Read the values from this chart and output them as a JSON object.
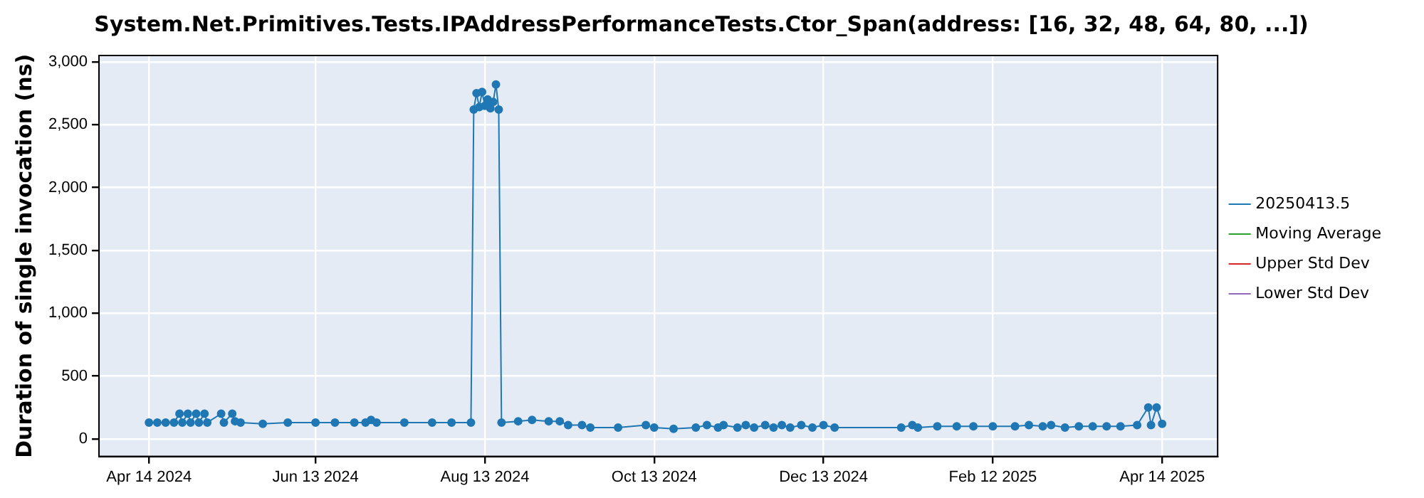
{
  "chart_data": {
    "type": "line",
    "title": "System.Net.Primitives.Tests.IPAddressPerformanceTests.Ctor_Span(address: [16, 32, 48, 64, 80, ...])",
    "ylabel": "Duration of single invocation (ns)",
    "x": [
      "2024-04-14",
      "2024-04-17",
      "2024-04-20",
      "2024-04-23",
      "2024-04-25",
      "2024-04-26",
      "2024-04-28",
      "2024-04-29",
      "2024-05-01",
      "2024-05-02",
      "2024-05-04",
      "2024-05-05",
      "2024-05-10",
      "2024-05-11",
      "2024-05-14",
      "2024-05-15",
      "2024-05-17",
      "2024-05-25",
      "2024-06-03",
      "2024-06-13",
      "2024-06-20",
      "2024-06-27",
      "2024-07-01",
      "2024-07-03",
      "2024-07-05",
      "2024-07-15",
      "2024-07-25",
      "2024-08-01",
      "2024-08-08",
      "2024-08-09",
      "2024-08-10",
      "2024-08-11",
      "2024-08-12",
      "2024-08-13",
      "2024-08-14",
      "2024-08-15",
      "2024-08-16",
      "2024-08-17",
      "2024-08-18",
      "2024-08-19",
      "2024-08-25",
      "2024-08-30",
      "2024-09-05",
      "2024-09-09",
      "2024-09-12",
      "2024-09-17",
      "2024-09-20",
      "2024-09-30",
      "2024-10-10",
      "2024-10-13",
      "2024-10-20",
      "2024-10-28",
      "2024-11-01",
      "2024-11-05",
      "2024-11-07",
      "2024-11-12",
      "2024-11-15",
      "2024-11-18",
      "2024-11-22",
      "2024-11-25",
      "2024-11-28",
      "2024-12-01",
      "2024-12-05",
      "2024-12-09",
      "2024-12-13",
      "2024-12-17",
      "2025-01-10",
      "2025-01-14",
      "2025-01-16",
      "2025-01-23",
      "2025-01-30",
      "2025-02-05",
      "2025-02-12",
      "2025-02-20",
      "2025-02-25",
      "2025-03-02",
      "2025-03-05",
      "2025-03-10",
      "2025-03-15",
      "2025-03-20",
      "2025-03-25",
      "2025-03-30",
      "2025-04-05",
      "2025-04-09",
      "2025-04-10",
      "2025-04-12",
      "2025-04-14"
    ],
    "series": [
      {
        "name": "20250413.5",
        "color": "#1f77b4",
        "values": [
          130,
          130,
          130,
          130,
          200,
          130,
          200,
          130,
          200,
          130,
          200,
          130,
          200,
          130,
          200,
          140,
          130,
          120,
          130,
          130,
          130,
          130,
          130,
          150,
          130,
          130,
          130,
          130,
          130,
          2620,
          2750,
          2640,
          2760,
          2650,
          2700,
          2630,
          2680,
          2820,
          2620,
          130,
          140,
          150,
          140,
          140,
          110,
          110,
          90,
          90,
          110,
          90,
          80,
          90,
          110,
          90,
          110,
          90,
          110,
          90,
          110,
          90,
          110,
          90,
          110,
          90,
          110,
          90,
          90,
          110,
          90,
          100,
          100,
          100,
          100,
          100,
          110,
          100,
          110,
          90,
          100,
          100,
          100,
          100,
          110,
          250,
          110,
          250,
          120
        ]
      },
      {
        "name": "Moving Average",
        "color": "#2ca02c",
        "values": [
          null,
          null,
          null,
          null,
          null,
          null,
          null,
          null,
          null,
          null,
          null,
          null,
          null,
          null,
          null,
          null,
          null,
          null,
          null,
          null,
          null,
          null,
          null,
          null,
          null,
          null,
          null,
          null,
          null,
          null,
          null,
          null,
          null,
          null,
          null,
          null,
          null,
          null,
          null,
          null,
          null,
          null,
          null,
          null,
          null,
          null,
          null,
          null,
          null,
          null,
          null,
          null,
          null,
          null,
          null,
          null,
          null,
          null,
          null,
          null,
          null,
          null,
          null,
          null,
          null,
          null,
          null,
          null,
          null,
          null,
          null,
          null,
          null,
          null,
          null,
          null,
          null,
          null,
          null,
          null,
          null,
          null,
          null,
          null,
          null,
          null,
          null
        ]
      },
      {
        "name": "Upper Std Dev",
        "color": "#d62728",
        "values": [
          null,
          null,
          null,
          null,
          null,
          null,
          null,
          null,
          null,
          null,
          null,
          null,
          null,
          null,
          null,
          null,
          null,
          null,
          null,
          null,
          null,
          null,
          null,
          null,
          null,
          null,
          null,
          null,
          null,
          null,
          null,
          null,
          null,
          null,
          null,
          null,
          null,
          null,
          null,
          null,
          null,
          null,
          null,
          null,
          null,
          null,
          null,
          null,
          null,
          null,
          null,
          null,
          null,
          null,
          null,
          null,
          null,
          null,
          null,
          null,
          null,
          null,
          null,
          null,
          null,
          null,
          null,
          null,
          null,
          null,
          null,
          null,
          null,
          null,
          null,
          null,
          null,
          null,
          null,
          null,
          null,
          null,
          null,
          null,
          null,
          null,
          null
        ]
      },
      {
        "name": "Lower Std Dev",
        "color": "#9467bd",
        "values": [
          null,
          null,
          null,
          null,
          null,
          null,
          null,
          null,
          null,
          null,
          null,
          null,
          null,
          null,
          null,
          null,
          null,
          null,
          null,
          null,
          null,
          null,
          null,
          null,
          null,
          null,
          null,
          null,
          null,
          null,
          null,
          null,
          null,
          null,
          null,
          null,
          null,
          null,
          null,
          null,
          null,
          null,
          null,
          null,
          null,
          null,
          null,
          null,
          null,
          null,
          null,
          null,
          null,
          null,
          null,
          null,
          null,
          null,
          null,
          null,
          null,
          null,
          null,
          null,
          null,
          null,
          null,
          null,
          null,
          null,
          null,
          null,
          null,
          null,
          null,
          null,
          null,
          null,
          null,
          null,
          null,
          null,
          null,
          null,
          null,
          null,
          null
        ]
      }
    ],
    "xlim": [
      "2024-03-27",
      "2025-05-04"
    ],
    "xticks": [
      {
        "value": "2024-04-14",
        "label": "Apr 14 2024"
      },
      {
        "value": "2024-06-13",
        "label": "Jun 13 2024"
      },
      {
        "value": "2024-08-13",
        "label": "Aug 13 2024"
      },
      {
        "value": "2024-10-13",
        "label": "Oct 13 2024"
      },
      {
        "value": "2024-12-13",
        "label": "Dec 13 2024"
      },
      {
        "value": "2025-02-12",
        "label": "Feb 12 2025"
      },
      {
        "value": "2025-04-14",
        "label": "Apr 14 2025"
      }
    ],
    "ylim": [
      -140,
      3050
    ],
    "yticks": [
      0,
      500,
      {
        "value": 1000,
        "label": "1,000"
      },
      {
        "value": 1500,
        "label": "1,500"
      },
      {
        "value": 2000,
        "label": "2,000"
      },
      {
        "value": 2500,
        "label": "2,500"
      },
      {
        "value": 3000,
        "label": "3,000"
      }
    ],
    "grid": true,
    "legend": "right",
    "marker": "circle",
    "line_style": "solid"
  }
}
